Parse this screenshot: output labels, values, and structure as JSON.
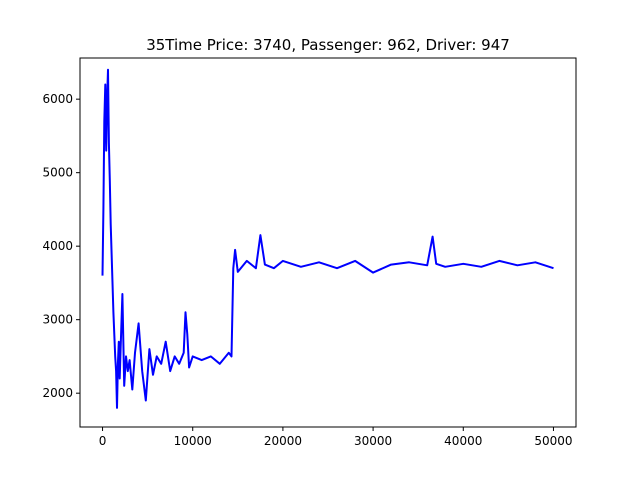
{
  "chart_data": {
    "type": "line",
    "title": "35Time Price: 3740, Passenger: 962, Driver: 947",
    "xlabel": "",
    "ylabel": "",
    "xlim": [
      -2500,
      52500
    ],
    "ylim": [
      1540,
      6560
    ],
    "x_ticks": [
      0,
      10000,
      20000,
      30000,
      40000,
      50000
    ],
    "x_tick_labels": [
      "0",
      "10000",
      "20000",
      "30000",
      "40000",
      "50000"
    ],
    "y_ticks": [
      2000,
      3000,
      4000,
      5000,
      6000
    ],
    "y_tick_labels": [
      "2000",
      "3000",
      "4000",
      "5000",
      "6000"
    ],
    "grid": false,
    "series": [
      {
        "color": "#0000ff",
        "x": [
          0,
          100,
          200,
          300,
          400,
          500,
          600,
          700,
          800,
          900,
          1000,
          1100,
          1200,
          1300,
          1400,
          1500,
          1600,
          1700,
          1800,
          1900,
          2000,
          2200,
          2400,
          2600,
          2800,
          3000,
          3300,
          3600,
          4000,
          4400,
          4800,
          5200,
          5600,
          6000,
          6500,
          7000,
          7500,
          8000,
          8500,
          9000,
          9200,
          9400,
          9600,
          10000,
          11000,
          12000,
          13000,
          14000,
          14300,
          14500,
          14700,
          15000,
          16000,
          17000,
          17500,
          18000,
          19000,
          20000,
          22000,
          24000,
          26000,
          28000,
          30000,
          32000,
          34000,
          36000,
          36600,
          37000,
          38000,
          40000,
          42000,
          44000,
          46000,
          48000,
          50000
        ],
        "y": [
          3600,
          4500,
          5700,
          6200,
          5300,
          6000,
          6400,
          5400,
          4900,
          4300,
          3900,
          3500,
          3100,
          2800,
          2500,
          2300,
          1800,
          2400,
          2700,
          2200,
          2600,
          3350,
          2100,
          2500,
          2300,
          2450,
          2050,
          2550,
          2950,
          2300,
          1900,
          2600,
          2250,
          2500,
          2400,
          2700,
          2300,
          2500,
          2400,
          2550,
          3100,
          2800,
          2350,
          2500,
          2450,
          2500,
          2400,
          2550,
          2500,
          3700,
          3950,
          3650,
          3800,
          3700,
          4150,
          3750,
          3700,
          3800,
          3720,
          3780,
          3700,
          3800,
          3640,
          3750,
          3780,
          3740,
          4130,
          3760,
          3720,
          3760,
          3720,
          3800,
          3740,
          3780,
          3700
        ]
      }
    ]
  }
}
